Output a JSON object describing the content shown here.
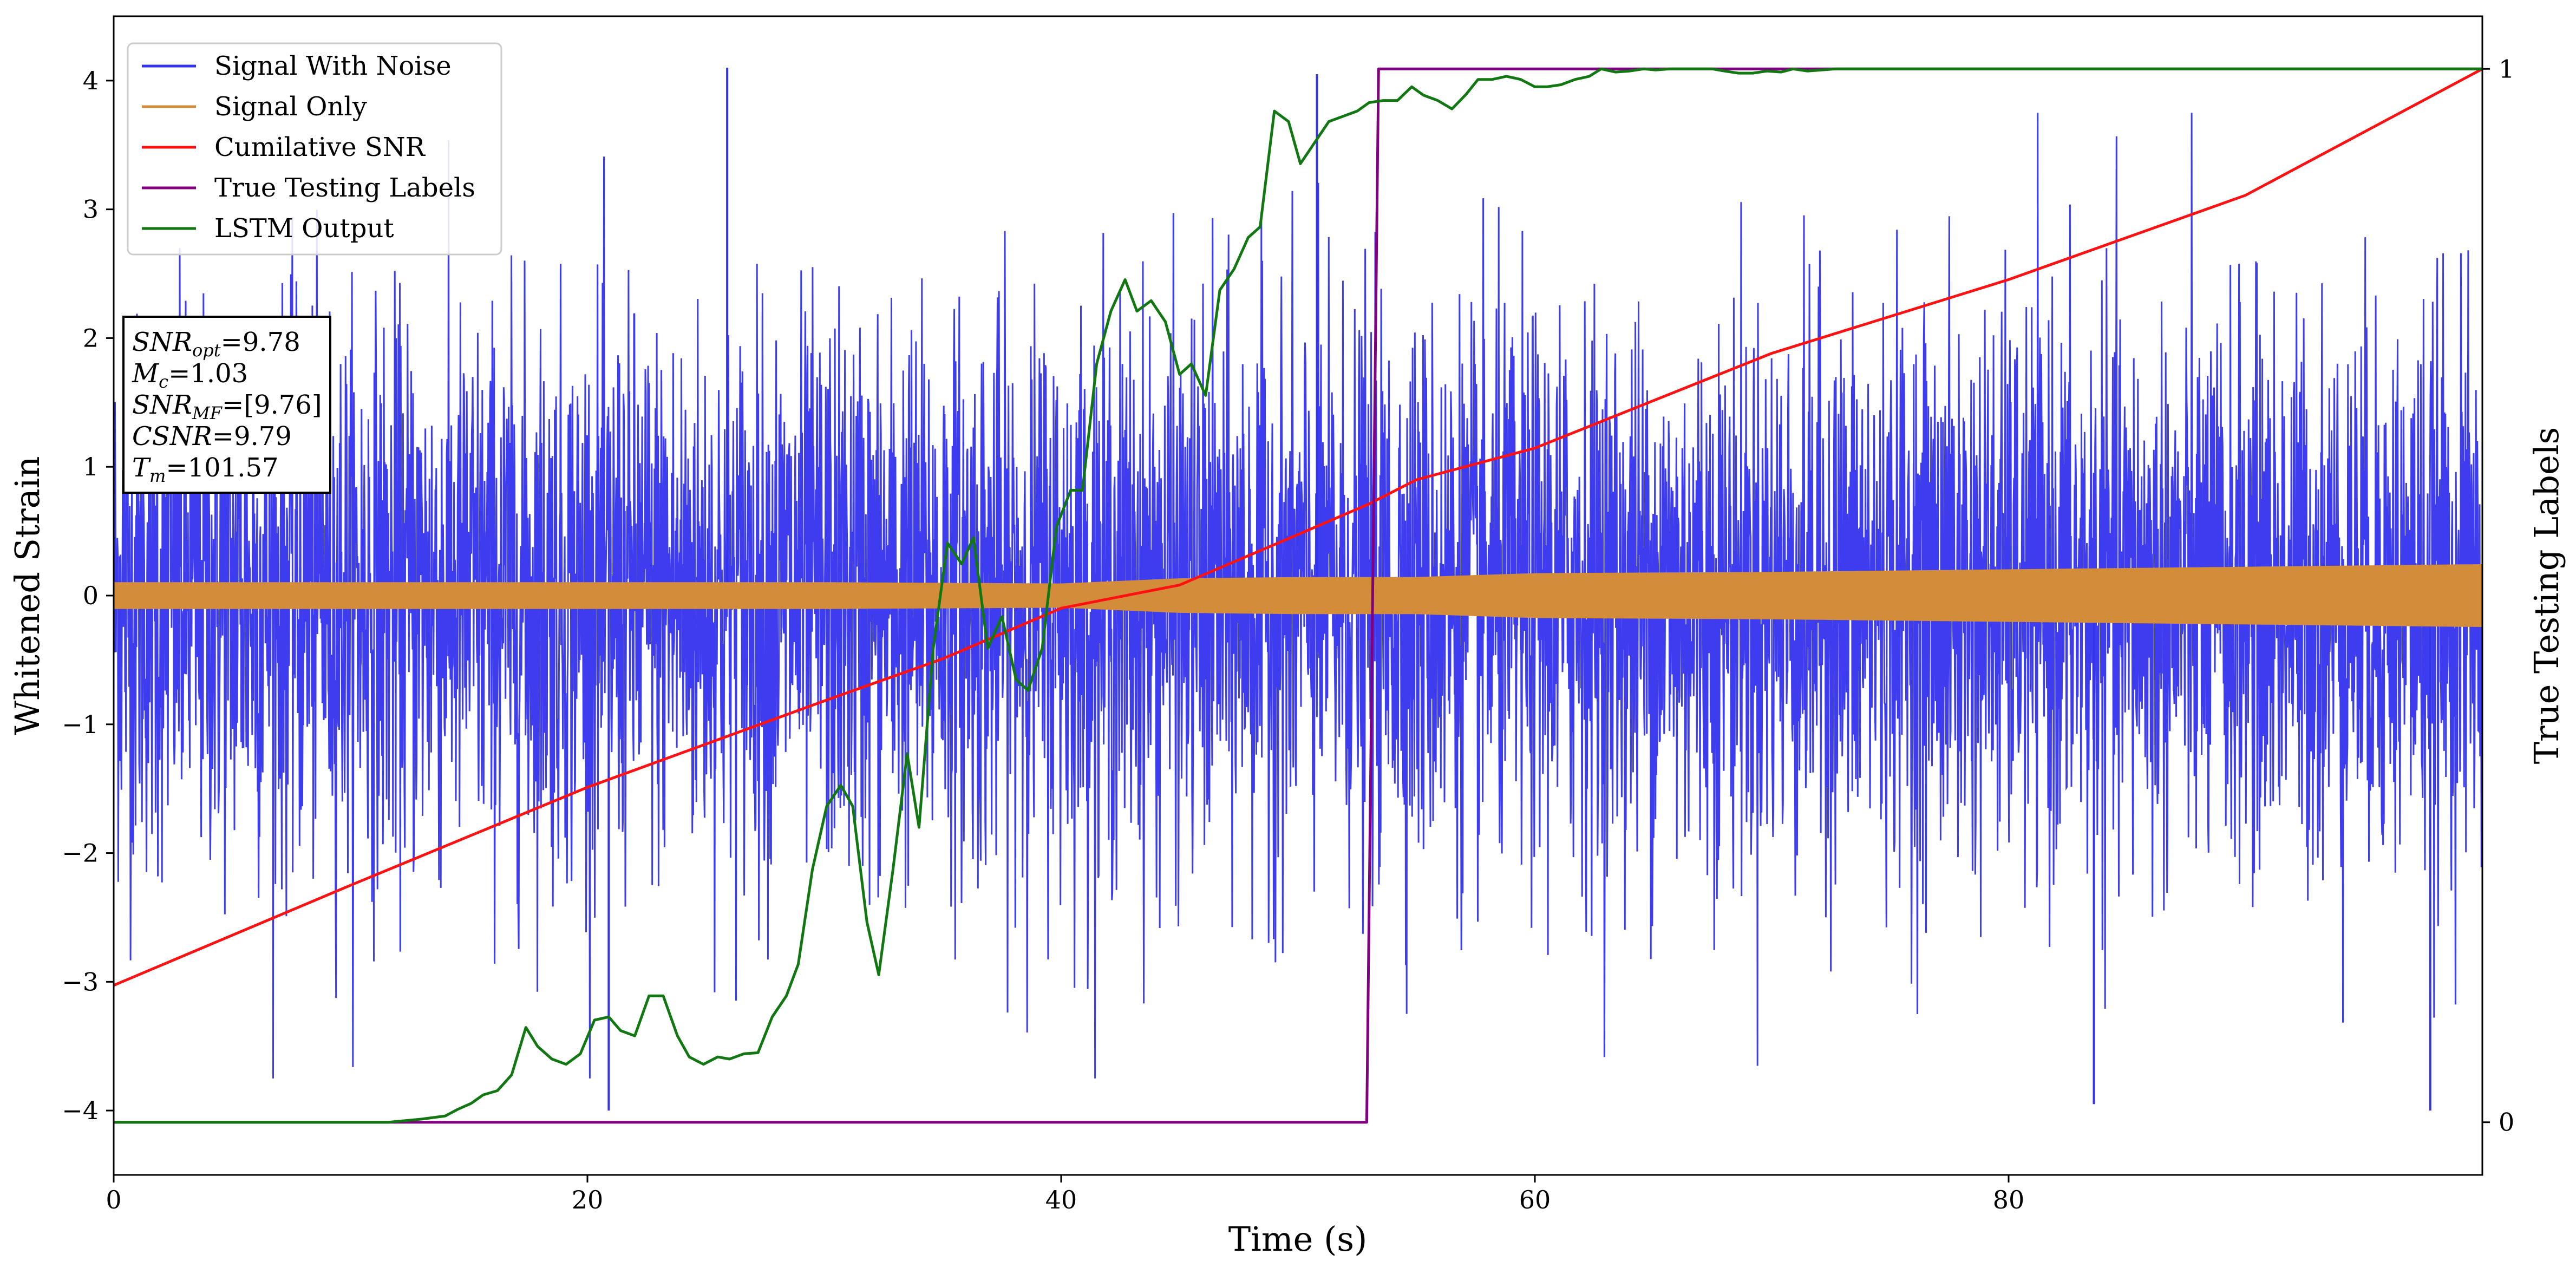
{
  "chart_data": {
    "type": "line",
    "xlabel": "Time (s)",
    "ylabel": "Whitened Strain",
    "y2label": "True Testing Labels",
    "xlim": [
      0,
      100
    ],
    "ylim": [
      -4.5,
      4.5
    ],
    "y2lim": [
      -0.05,
      1.05
    ],
    "xticks": [
      "0",
      "20",
      "40",
      "60",
      "80"
    ],
    "xtick_values": [
      0,
      20,
      40,
      60,
      80
    ],
    "yticks": [
      "−4",
      "−3",
      "−2",
      "−1",
      "0",
      "1",
      "2",
      "3",
      "4"
    ],
    "ytick_values": [
      -4,
      -3,
      -2,
      -1,
      0,
      1,
      2,
      3,
      4
    ],
    "y2ticks": [
      "0",
      "1"
    ],
    "y2tick_values": [
      0,
      1
    ],
    "grid": false,
    "legend_position": "top-left",
    "series": [
      {
        "name": "Signal With Noise",
        "color": "#3333ee",
        "axis": "left",
        "description": "noisy whitened strain, range about -4 to 4.1",
        "noise_sigma": 1.0,
        "peaks": [
          {
            "x": 25.9,
            "y": 4.1
          },
          {
            "x": 20.9,
            "y": -4.0
          },
          {
            "x": 50.8,
            "y": 4.05
          },
          {
            "x": 83.6,
            "y": -3.95
          },
          {
            "x": 97.8,
            "y": -4.0
          }
        ]
      },
      {
        "name": "Signal Only",
        "color": "#d38c3a",
        "axis": "left",
        "envelope": {
          "x": [
            0,
            10,
            20,
            30,
            40,
            45,
            50,
            55,
            60,
            70,
            80,
            90,
            100
          ],
          "amplitude": [
            0.1,
            0.1,
            0.1,
            0.1,
            0.09,
            0.13,
            0.14,
            0.14,
            0.17,
            0.18,
            0.2,
            0.22,
            0.24
          ]
        }
      },
      {
        "name": "Cumilative SNR",
        "color": "#ff1111",
        "axis": "right",
        "x": [
          0,
          10,
          20,
          30,
          35,
          40,
          45,
          50,
          53,
          55,
          60,
          70,
          80,
          90,
          100
        ],
        "y": [
          0.13,
          0.225,
          0.318,
          0.4,
          0.44,
          0.488,
          0.51,
          0.558,
          0.587,
          0.61,
          0.64,
          0.73,
          0.8,
          0.88,
          1.0
        ]
      },
      {
        "name": "True Testing Labels",
        "color": "#800080",
        "axis": "right",
        "x": [
          0,
          52.9,
          53.4,
          100
        ],
        "y": [
          0,
          0,
          1,
          1
        ]
      },
      {
        "name": "LSTM Output",
        "color": "#117711",
        "axis": "right",
        "x": [
          0,
          11.6,
          13,
          14,
          14.5,
          15.1,
          15.6,
          16.2,
          16.8,
          17.4,
          17.9,
          18.5,
          19.1,
          19.7,
          20.3,
          20.9,
          21.4,
          22,
          22.6,
          23.2,
          23.8,
          24.3,
          24.9,
          25.5,
          26,
          26.6,
          27.2,
          27.8,
          28.4,
          28.9,
          29.5,
          30.1,
          30.7,
          31.2,
          31.8,
          32.3,
          32.9,
          33.5,
          34,
          34.6,
          35.2,
          35.8,
          36.3,
          36.9,
          37.5,
          38.1,
          38.6,
          39.2,
          39.8,
          40.4,
          40.9,
          41.5,
          42.1,
          42.7,
          43.2,
          43.8,
          44.4,
          45,
          45.5,
          46.1,
          46.7,
          47.3,
          47.9,
          48.4,
          49,
          49.6,
          50.1,
          50.7,
          51.3,
          51.9,
          52.5,
          53,
          53.6,
          54.2,
          54.8,
          55.3,
          55.9,
          56.5,
          57.1,
          57.6,
          58.2,
          58.8,
          59.4,
          60,
          60.5,
          61.1,
          61.7,
          62.3,
          62.8,
          63.4,
          64,
          64.6,
          65.1,
          65.7,
          66.3,
          66.9,
          67.5,
          68,
          68.6,
          69.2,
          69.8,
          70.4,
          70.9,
          71.5,
          72.1,
          72.7,
          73.3,
          74,
          80,
          90,
          100
        ],
        "y": [
          0,
          0,
          0.003,
          0.006,
          0.012,
          0.018,
          0.026,
          0.03,
          0.045,
          0.09,
          0.072,
          0.06,
          0.055,
          0.065,
          0.097,
          0.1,
          0.087,
          0.082,
          0.12,
          0.12,
          0.082,
          0.062,
          0.055,
          0.062,
          0.06,
          0.065,
          0.066,
          0.1,
          0.12,
          0.15,
          0.24,
          0.3,
          0.32,
          0.3,
          0.19,
          0.14,
          0.24,
          0.35,
          0.28,
          0.45,
          0.55,
          0.53,
          0.555,
          0.45,
          0.48,
          0.42,
          0.41,
          0.45,
          0.565,
          0.6,
          0.6,
          0.72,
          0.77,
          0.8,
          0.77,
          0.78,
          0.76,
          0.71,
          0.72,
          0.69,
          0.79,
          0.81,
          0.84,
          0.85,
          0.96,
          0.95,
          0.91,
          0.93,
          0.95,
          0.955,
          0.96,
          0.968,
          0.97,
          0.97,
          0.983,
          0.975,
          0.97,
          0.962,
          0.976,
          0.99,
          0.99,
          0.993,
          0.99,
          0.983,
          0.983,
          0.985,
          0.99,
          0.993,
          1.0,
          0.997,
          0.998,
          1.0,
          0.999,
          1.0,
          1.0,
          1.0,
          1.0,
          0.998,
          0.996,
          0.996,
          0.998,
          0.997,
          1.0,
          0.998,
          0.999,
          1.0,
          1.0,
          1.0,
          1.0,
          1.0,
          1.0
        ]
      }
    ],
    "legend": [
      "Signal With Noise",
      "Signal Only",
      "Cumilative SNR",
      "True Testing Labels",
      "LSTM Output"
    ],
    "annotation": {
      "lines": [
        {
          "base": "SNR",
          "sub": "opt",
          "rest": "=9.78"
        },
        {
          "base": "M",
          "sub": "c",
          "rest": "=1.03"
        },
        {
          "base": "SNR",
          "sub": "MF",
          "rest": "=[9.76]"
        },
        {
          "base": "CSNR",
          "sub": "",
          "rest": "=9.79"
        },
        {
          "base": "T",
          "sub": "m",
          "rest": "=101.57"
        }
      ]
    }
  }
}
